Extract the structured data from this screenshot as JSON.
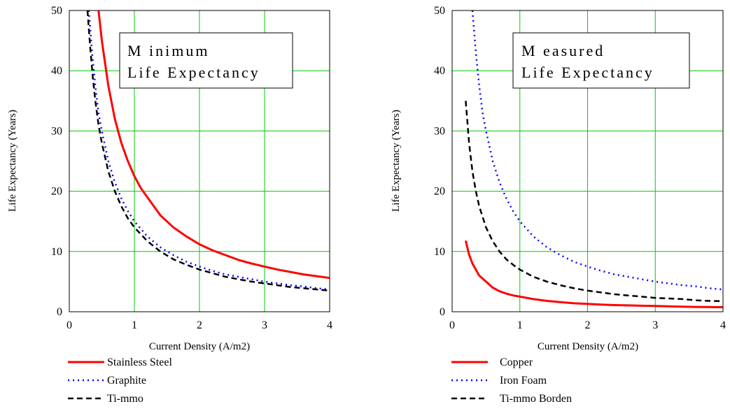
{
  "chart_data": [
    {
      "type": "line",
      "title_lines": [
        "M inimum",
        "Life Expectancy"
      ],
      "xlabel": "Current Density (A/m2)",
      "ylabel": "Life Expectancy (Years)",
      "xlim": [
        0,
        4
      ],
      "ylim": [
        0,
        50
      ],
      "xticks": [
        0,
        1,
        2,
        3,
        4
      ],
      "yticks": [
        0,
        10,
        20,
        30,
        40,
        50
      ],
      "grid": true,
      "legend_position": "below",
      "series": [
        {
          "name": "Stainless Steel",
          "color": "#ff0000",
          "dash": "solid",
          "x": [
            0.45,
            0.5,
            0.6,
            0.7,
            0.8,
            0.9,
            1.0,
            1.1,
            1.2,
            1.4,
            1.6,
            1.8,
            2.0,
            2.2,
            2.4,
            2.6,
            2.8,
            3.0,
            3.2,
            3.4,
            3.6,
            3.8,
            4.0
          ],
          "y": [
            50,
            45,
            37.5,
            32,
            28,
            25,
            22.5,
            20.5,
            19,
            16,
            14,
            12.5,
            11.2,
            10.2,
            9.4,
            8.6,
            8.0,
            7.5,
            7.0,
            6.6,
            6.2,
            5.9,
            5.6
          ]
        },
        {
          "name": "Graphite",
          "color": "#0000ff",
          "dash": "dotted",
          "x": [
            0.3,
            0.35,
            0.4,
            0.45,
            0.5,
            0.6,
            0.7,
            0.8,
            0.9,
            1.0,
            1.2,
            1.4,
            1.6,
            1.8,
            2.0,
            2.2,
            2.4,
            2.6,
            2.8,
            3.0,
            3.2,
            3.4,
            3.6,
            3.8,
            4.0
          ],
          "y": [
            50,
            43,
            37.5,
            33,
            30,
            25,
            21.5,
            18.8,
            16.7,
            15,
            12.5,
            10.7,
            9.4,
            8.3,
            7.5,
            6.8,
            6.2,
            5.8,
            5.4,
            5.0,
            4.7,
            4.4,
            4.2,
            3.9,
            3.7
          ]
        },
        {
          "name": "Ti-mmo",
          "color": "#000000",
          "dash": "dashed",
          "x": [
            0.28,
            0.32,
            0.36,
            0.4,
            0.45,
            0.5,
            0.6,
            0.7,
            0.8,
            0.9,
            1.0,
            1.2,
            1.4,
            1.6,
            1.8,
            2.0,
            2.2,
            2.4,
            2.6,
            2.8,
            3.0,
            3.2,
            3.4,
            3.6,
            3.8,
            4.0
          ],
          "y": [
            50,
            44,
            39,
            35,
            31,
            28,
            23.3,
            20,
            17.5,
            15.5,
            14,
            11.7,
            10,
            8.7,
            7.8,
            7.0,
            6.4,
            5.8,
            5.4,
            5.0,
            4.7,
            4.4,
            4.1,
            3.9,
            3.7,
            3.5
          ]
        }
      ]
    },
    {
      "type": "line",
      "title_lines": [
        "M easured",
        "Life Expectancy"
      ],
      "xlabel": "Current Density (A/m2)",
      "ylabel": "Life Expectancy (Years)",
      "xlim": [
        0,
        4
      ],
      "ylim": [
        0,
        50
      ],
      "xticks": [
        0,
        1,
        2,
        3,
        4
      ],
      "yticks": [
        0,
        10,
        20,
        30,
        40,
        50
      ],
      "grid": true,
      "legend_position": "below",
      "series": [
        {
          "name": "Copper",
          "color": "#ff0000",
          "dash": "solid",
          "x": [
            0.2,
            0.25,
            0.3,
            0.4,
            0.5,
            0.6,
            0.7,
            0.8,
            0.9,
            1.0,
            1.2,
            1.4,
            1.6,
            1.8,
            2.0,
            2.2,
            2.4,
            2.6,
            2.8,
            3.0,
            3.2,
            3.4,
            3.6,
            3.8,
            4.0
          ],
          "y": [
            11.8,
            9.5,
            8.0,
            6.0,
            5.0,
            4.0,
            3.4,
            3.0,
            2.7,
            2.5,
            2.1,
            1.8,
            1.6,
            1.4,
            1.3,
            1.2,
            1.1,
            1.05,
            1.0,
            0.95,
            0.9,
            0.85,
            0.8,
            0.78,
            0.75
          ]
        },
        {
          "name": "Iron Foam",
          "color": "#0000ff",
          "dash": "dotted",
          "x": [
            0.3,
            0.35,
            0.4,
            0.45,
            0.5,
            0.6,
            0.7,
            0.8,
            0.9,
            1.0,
            1.2,
            1.4,
            1.6,
            1.8,
            2.0,
            2.2,
            2.4,
            2.6,
            2.8,
            3.0,
            3.2,
            3.4,
            3.6,
            3.8,
            4.0
          ],
          "y": [
            50,
            43,
            37.5,
            33,
            30,
            25,
            21.5,
            18.8,
            16.7,
            15,
            12.5,
            10.7,
            9.4,
            8.3,
            7.5,
            6.8,
            6.2,
            5.8,
            5.4,
            5.0,
            4.7,
            4.4,
            4.2,
            3.9,
            3.7
          ]
        },
        {
          "name": "Ti-mmo Borden",
          "color": "#000000",
          "dash": "dashed",
          "x": [
            0.2,
            0.25,
            0.3,
            0.35,
            0.4,
            0.5,
            0.6,
            0.7,
            0.8,
            0.9,
            1.0,
            1.2,
            1.4,
            1.6,
            1.8,
            2.0,
            2.2,
            2.4,
            2.6,
            2.8,
            3.0,
            3.2,
            3.4,
            3.6,
            3.8,
            4.0
          ],
          "y": [
            35,
            28,
            23.3,
            20,
            17.5,
            14,
            11.7,
            10,
            8.7,
            7.8,
            7.0,
            5.8,
            5.0,
            4.4,
            3.9,
            3.5,
            3.2,
            2.9,
            2.7,
            2.5,
            2.3,
            2.2,
            2.1,
            1.9,
            1.8,
            1.75
          ]
        }
      ]
    }
  ]
}
